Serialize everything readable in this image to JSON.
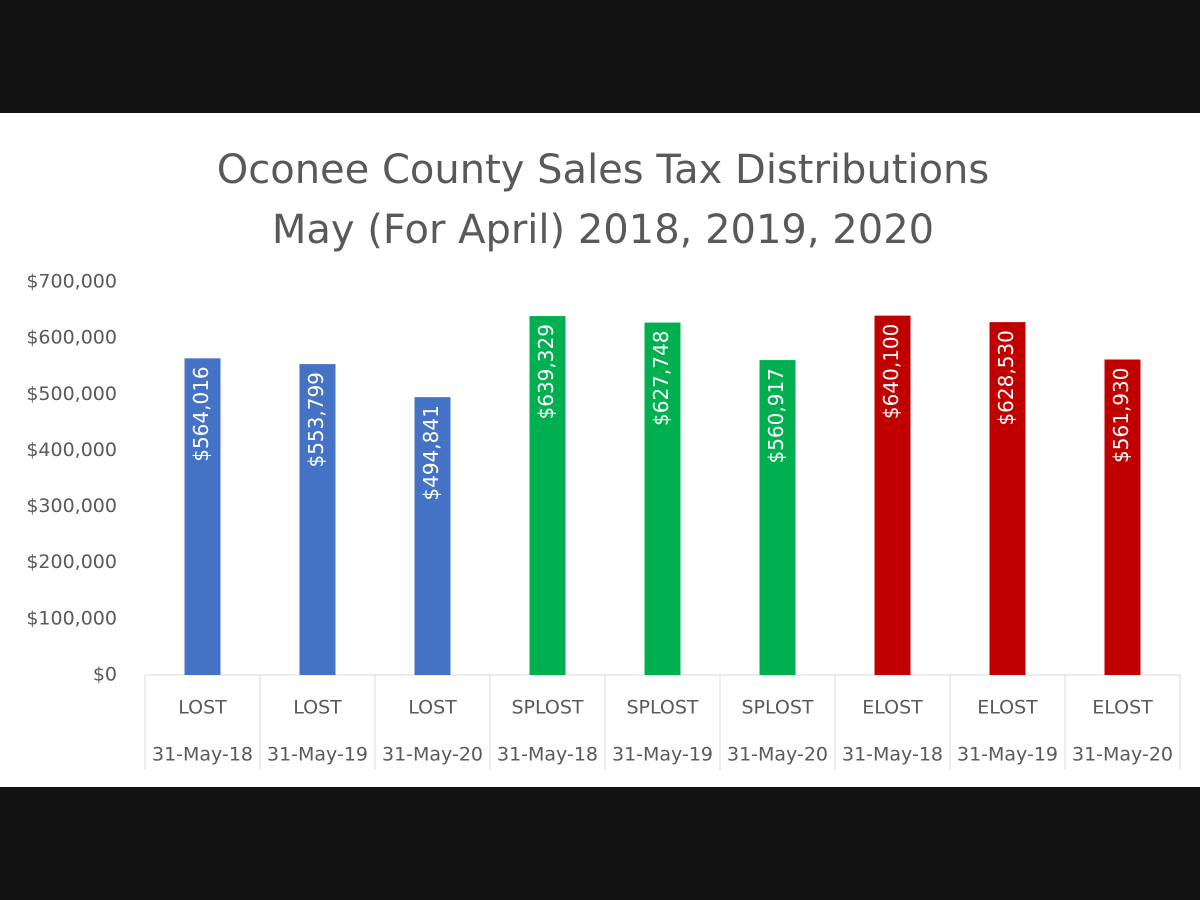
{
  "chart_data": {
    "type": "bar",
    "title": "Oconee County Sales Tax Distributions",
    "subtitle": "May (For April) 2018, 2019, 2020",
    "categories": [
      "LOST",
      "LOST",
      "LOST",
      "SPLOST",
      "SPLOST",
      "SPLOST",
      "ELOST",
      "ELOST",
      "ELOST"
    ],
    "category_dates": [
      "31-May-18",
      "31-May-19",
      "31-May-20",
      "31-May-18",
      "31-May-19",
      "31-May-20",
      "31-May-18",
      "31-May-19",
      "31-May-20"
    ],
    "values": [
      564016,
      553799,
      494841,
      639329,
      627748,
      560917,
      640100,
      628530,
      561930
    ],
    "value_labels": [
      "$564,016",
      "$553,799",
      "$494,841",
      "$639,329",
      "$627,748",
      "$560,917",
      "$640,100",
      "$628,530",
      "$561,930"
    ],
    "colors": [
      "#4472c4",
      "#4472c4",
      "#4472c4",
      "#00b050",
      "#00b050",
      "#00b050",
      "#c00000",
      "#c00000",
      "#c00000"
    ],
    "ylim": [
      0,
      700000
    ],
    "yticks": [
      {
        "value": 0,
        "label": "$0"
      },
      {
        "value": 100000,
        "label": "$100,000"
      },
      {
        "value": 200000,
        "label": "$200,000"
      },
      {
        "value": 300000,
        "label": "$300,000"
      },
      {
        "value": 400000,
        "label": "$400,000"
      },
      {
        "value": 500000,
        "label": "$500,000"
      },
      {
        "value": 600000,
        "label": "$600,000"
      },
      {
        "value": 700000,
        "label": "$700,000"
      }
    ],
    "grid": false
  }
}
